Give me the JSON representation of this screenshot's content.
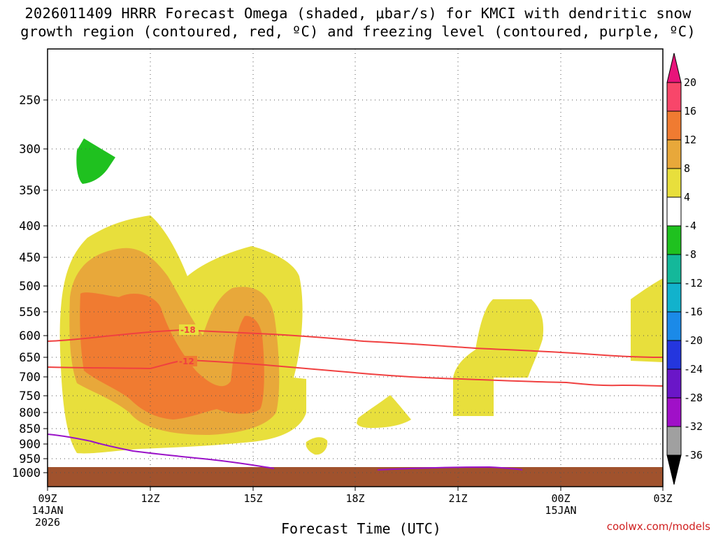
{
  "chart_data": {
    "type": "contour",
    "title_line1": "2026011409 HRRR Forecast Omega (shaded, μbar/s) for KMCI with dendritic snow",
    "title_line2": "growth region (contoured, red, ºC) and freezing level (contoured, purple, ºC)",
    "xlabel": "Forecast Time (UTC)",
    "ylabel": "",
    "credit": "coolwx.com/models",
    "x_ticks": [
      {
        "label": "09Z",
        "sub1": "14JAN",
        "sub2": "2026"
      },
      {
        "label": "12Z",
        "sub1": "",
        "sub2": ""
      },
      {
        "label": "15Z",
        "sub1": "",
        "sub2": ""
      },
      {
        "label": "18Z",
        "sub1": "",
        "sub2": ""
      },
      {
        "label": "21Z",
        "sub1": "",
        "sub2": ""
      },
      {
        "label": "00Z",
        "sub1": "15JAN",
        "sub2": ""
      },
      {
        "label": "03Z",
        "sub1": "",
        "sub2": ""
      }
    ],
    "y_ticks": [
      "250",
      "300",
      "350",
      "400",
      "450",
      "500",
      "550",
      "600",
      "650",
      "700",
      "750",
      "800",
      "850",
      "900",
      "950",
      "1000"
    ],
    "y_tick_values": [
      250,
      300,
      350,
      400,
      450,
      500,
      550,
      600,
      650,
      700,
      750,
      800,
      850,
      900,
      950,
      1000
    ],
    "colorbar": {
      "labels": [
        "20",
        "16",
        "12",
        "8",
        "4",
        "-4",
        "-8",
        "-12",
        "-16",
        "-20",
        "-24",
        "-28",
        "-32",
        "-36"
      ],
      "colors": [
        "#f8466a",
        "#f07b31",
        "#e8a83a",
        "#e8df3c",
        "#ffffff",
        "#1fc11f",
        "#14b89a",
        "#12b2cc",
        "#1b8ae8",
        "#2436de",
        "#6a16c8",
        "#a010c8",
        "#a0a0a0"
      ],
      "top_arrow": "#e8137a",
      "bottom_arrow": "#000000"
    },
    "contours": [
      {
        "name": "dendritic growth -18",
        "label": "-18",
        "color": "#f04040"
      },
      {
        "name": "dendritic growth -12",
        "label": "-12",
        "color": "#f04040"
      },
      {
        "name": "freezing level",
        "label": "",
        "color": "#9a12c8"
      }
    ],
    "colors": {
      "ground": "#a0522d",
      "grid": "#555555"
    }
  }
}
